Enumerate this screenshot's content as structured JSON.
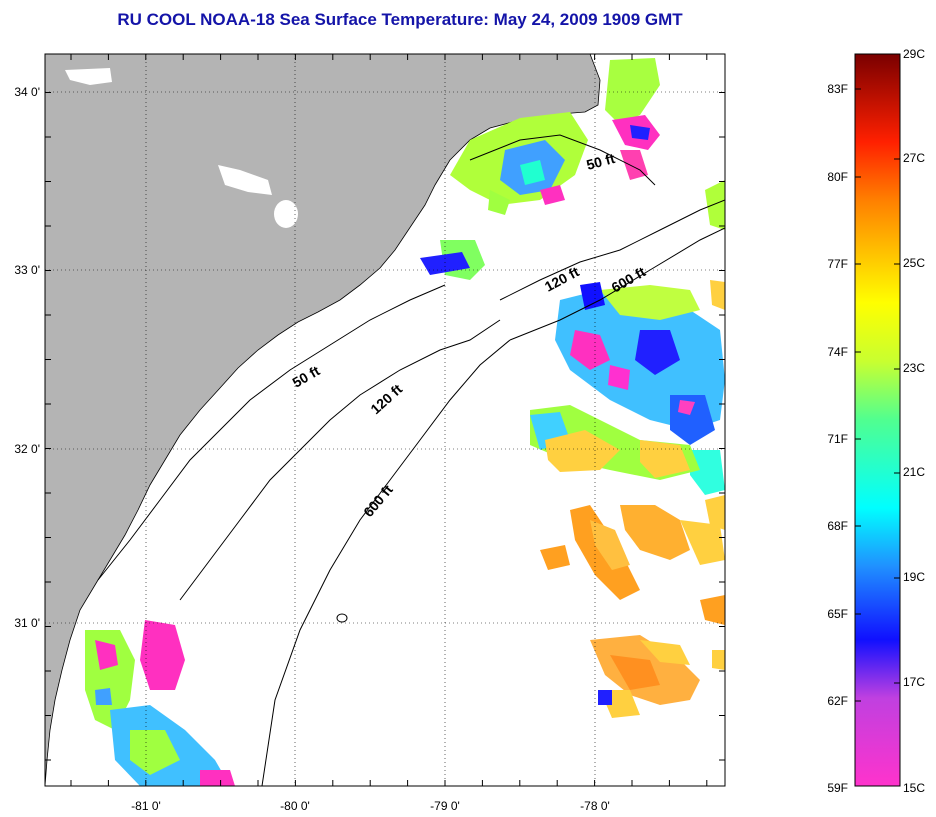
{
  "title": "RU COOL  NOAA-18  Sea Surface Temperature:  May 24, 2009 1909 GMT",
  "axes": {
    "lat_labels": [
      "34 0'",
      "33 0'",
      "32 0'",
      "31 0'"
    ],
    "lon_labels": [
      "-81 0'",
      "-80 0'",
      "-79 0'",
      "-78 0'"
    ]
  },
  "contours": {
    "label_50_upper": "50 ft",
    "label_120_upper": "120 ft",
    "label_600_upper": "600 ft",
    "label_50_lower": "50 ft",
    "label_120_lower": "120 ft",
    "label_600_lower": "600 ft"
  },
  "colorbar": {
    "fahrenheit_labels": [
      "83F",
      "80F",
      "77F",
      "74F",
      "71F",
      "68F",
      "65F",
      "62F",
      "59F"
    ],
    "celsius_labels": [
      "29C",
      "27C",
      "25C",
      "23C",
      "21C",
      "19C",
      "17C",
      "15C"
    ]
  },
  "colors": {
    "land": "#b4b4b4",
    "title": "#1414a8"
  }
}
